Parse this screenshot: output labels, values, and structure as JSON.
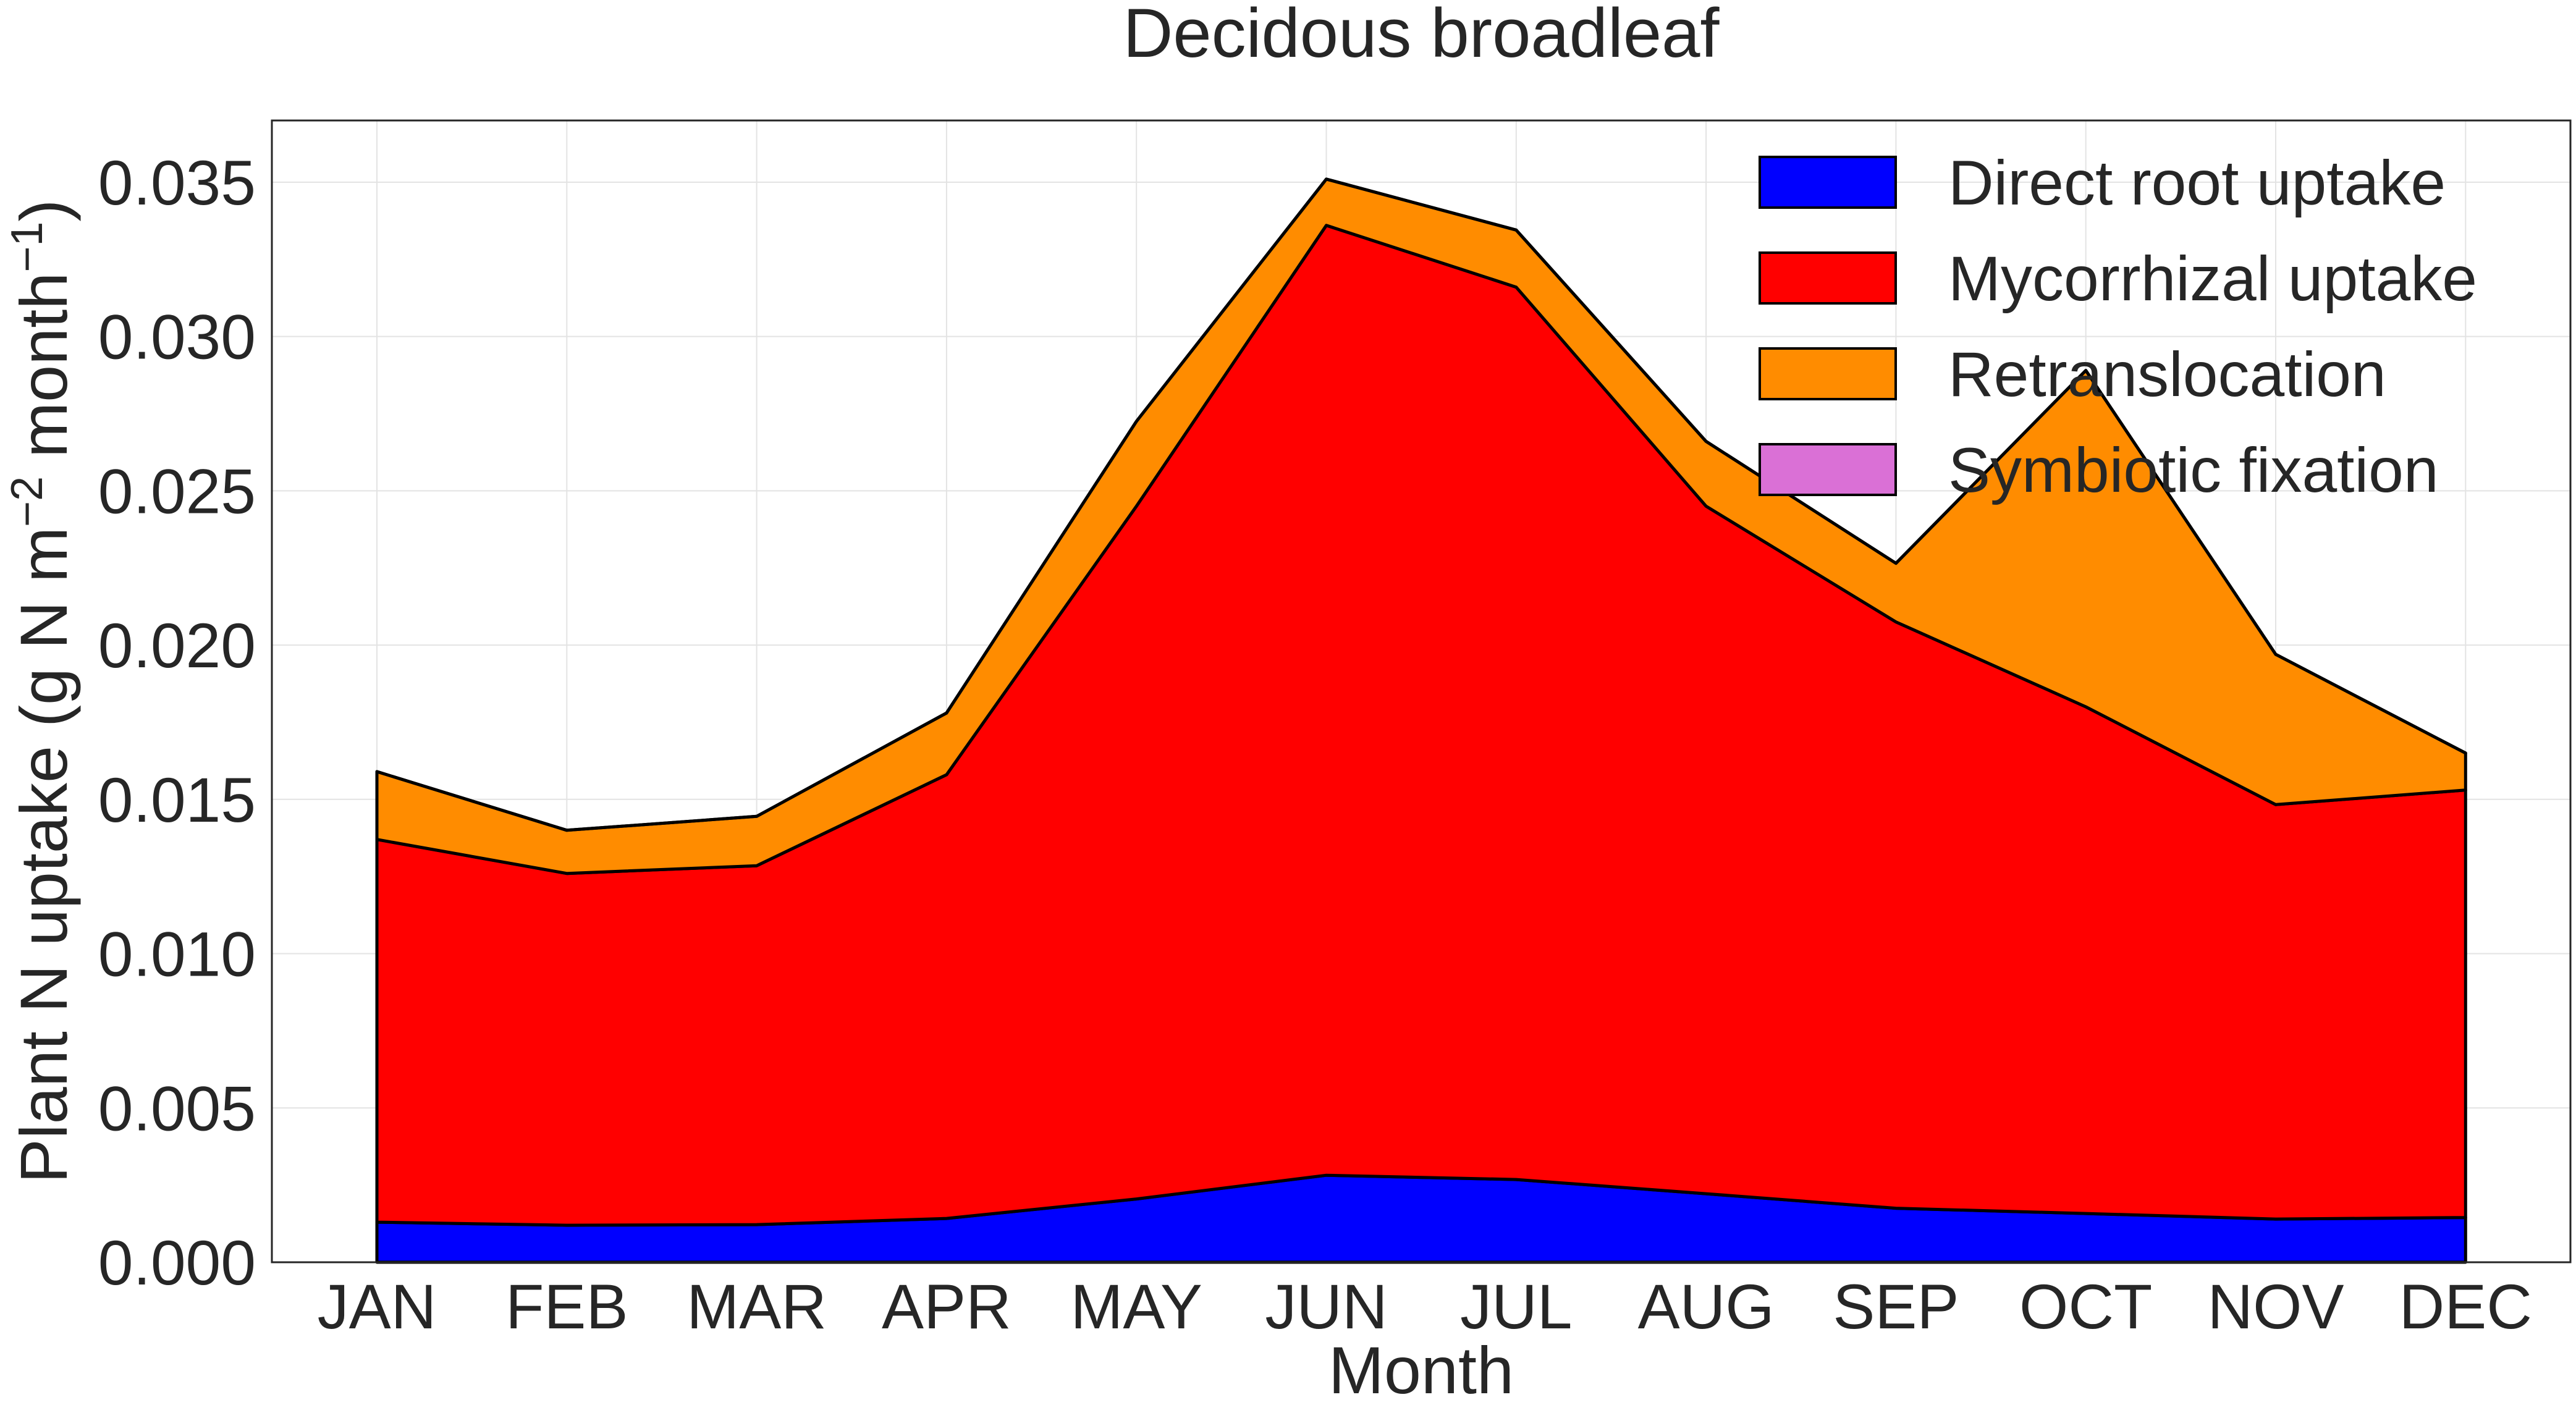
{
  "chart_data": {
    "type": "area",
    "stacked": true,
    "title": "Decidous broadleaf",
    "xlabel": "Month",
    "ylabel": "Plant N uptake (g N m",
    "ylabel_sup1": "−2",
    "ylabel_mid": " month",
    "ylabel_sup2": "−1",
    "ylabel_end": ")",
    "ylim": [
      0.0,
      0.037
    ],
    "yticks": [
      "0.000",
      "0.005",
      "0.010",
      "0.015",
      "0.020",
      "0.025",
      "0.030",
      "0.035"
    ],
    "ytick_values": [
      0.0,
      0.005,
      0.01,
      0.015,
      0.02,
      0.025,
      0.03,
      0.035
    ],
    "categories": [
      "JAN",
      "FEB",
      "MAR",
      "APR",
      "MAY",
      "JUN",
      "JUL",
      "AUG",
      "SEP",
      "OCT",
      "NOV",
      "DEC"
    ],
    "grid": true,
    "legend_position": "top-right",
    "series": [
      {
        "name": "Direct root uptake",
        "color": "#0000ff",
        "values": [
          0.0013,
          0.0012,
          0.00122,
          0.00142,
          0.00205,
          0.00282,
          0.00268,
          0.00222,
          0.00175,
          0.00158,
          0.0014,
          0.00145
        ]
      },
      {
        "name": "Mycorrhizal uptake",
        "color": "#ff0000",
        "values": [
          0.0124,
          0.0114,
          0.01163,
          0.01438,
          0.02245,
          0.03078,
          0.02892,
          0.02228,
          0.019,
          0.01642,
          0.01343,
          0.01385
        ]
      },
      {
        "name": "Retranslocation",
        "color": "#ff8c00",
        "values": [
          0.0022,
          0.0014,
          0.0016,
          0.002,
          0.00275,
          0.0015,
          0.00185,
          0.0021,
          0.0019,
          0.0109,
          0.00487,
          0.0012
        ]
      },
      {
        "name": "Symbiotic fixation",
        "color": "#da70d6",
        "values": [
          0,
          0,
          0,
          0,
          0,
          0,
          0,
          0,
          0,
          0,
          0,
          0
        ]
      }
    ]
  }
}
